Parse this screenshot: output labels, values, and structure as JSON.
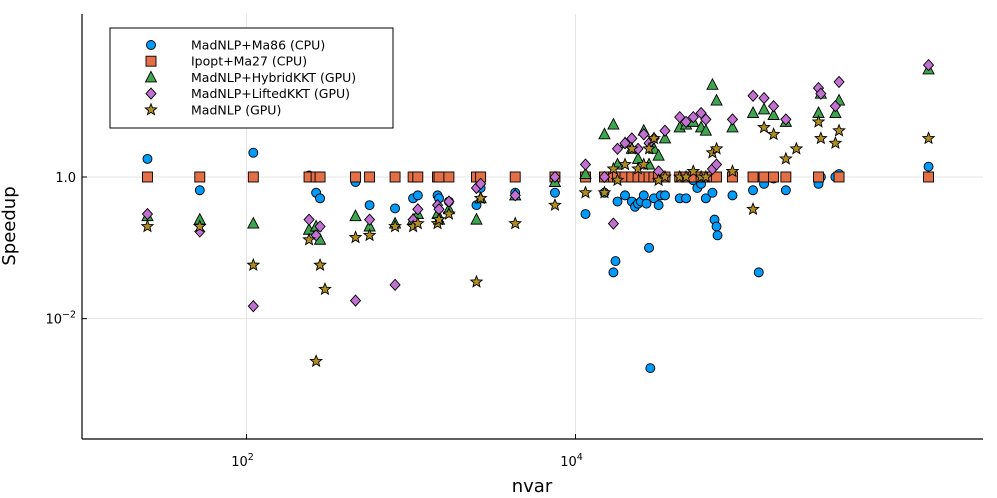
{
  "chart_data": {
    "type": "scatter",
    "title": "",
    "xlabel": "nvar",
    "ylabel": "Speedup",
    "xscale": "log10",
    "yscale": "log10",
    "xlim": [
      10,
      3000000
    ],
    "ylim": [
      0.0002,
      200
    ],
    "xticks": [
      {
        "value": 100,
        "base": "10",
        "exp": "2"
      },
      {
        "value": 10000,
        "base": "10",
        "exp": "4"
      }
    ],
    "yticks": [
      {
        "value": 0.01,
        "base": "10",
        "exp": "−2"
      },
      {
        "value": 1,
        "base": "1.0",
        "exp": ""
      }
    ],
    "grid": true,
    "legend_position": "top-left",
    "series": [
      {
        "name": "MadNLP+Ma86 (CPU)",
        "marker": "circle",
        "color": "#009AFA",
        "points": [
          [
            25,
            1.8
          ],
          [
            52,
            0.65
          ],
          [
            110,
            2.2
          ],
          [
            240,
            1.05
          ],
          [
            265,
            0.6
          ],
          [
            280,
            0.5
          ],
          [
            460,
            0.85
          ],
          [
            560,
            0.4
          ],
          [
            800,
            0.36
          ],
          [
            1030,
            0.5
          ],
          [
            1100,
            0.55
          ],
          [
            1450,
            0.55
          ],
          [
            1480,
            0.5
          ],
          [
            1700,
            0.45
          ],
          [
            2500,
            0.4
          ],
          [
            2650,
            0.7
          ],
          [
            4300,
            0.6
          ],
          [
            7500,
            0.6
          ],
          [
            11500,
            0.3
          ],
          [
            15000,
            0.6
          ],
          [
            17000,
            0.045
          ],
          [
            17500,
            0.065
          ],
          [
            18000,
            0.45
          ],
          [
            20000,
            0.55
          ],
          [
            22000,
            0.45
          ],
          [
            23000,
            0.38
          ],
          [
            24000,
            0.42
          ],
          [
            25000,
            0.45
          ],
          [
            26000,
            0.55
          ],
          [
            27000,
            0.42
          ],
          [
            28000,
            0.1
          ],
          [
            28500,
            0.002
          ],
          [
            30000,
            0.5
          ],
          [
            32000,
            0.4
          ],
          [
            33000,
            0.55
          ],
          [
            35000,
            0.55
          ],
          [
            43000,
            0.5
          ],
          [
            47000,
            0.5
          ],
          [
            52000,
            0.9
          ],
          [
            55000,
            0.7
          ],
          [
            58000,
            0.8
          ],
          [
            62000,
            0.5
          ],
          [
            68000,
            0.6
          ],
          [
            70000,
            0.25
          ],
          [
            72000,
            0.2
          ],
          [
            73000,
            0.15
          ],
          [
            90000,
            0.55
          ],
          [
            120000,
            0.65
          ],
          [
            130000,
            0.045
          ],
          [
            140000,
            0.8
          ],
          [
            160000,
            0.95
          ],
          [
            190000,
            0.65
          ],
          [
            300000,
            0.8
          ],
          [
            310000,
            1.0
          ],
          [
            380000,
            1.0
          ],
          [
            400000,
            1.1
          ],
          [
            1400000,
            1.4
          ]
        ]
      },
      {
        "name": "Ipopt+Ma27 (CPU)",
        "marker": "square",
        "color": "#E26F46",
        "points": [
          [
            25,
            1
          ],
          [
            52,
            1
          ],
          [
            110,
            1
          ],
          [
            240,
            1
          ],
          [
            265,
            1
          ],
          [
            280,
            1
          ],
          [
            460,
            1
          ],
          [
            560,
            1
          ],
          [
            800,
            1
          ],
          [
            1030,
            1
          ],
          [
            1100,
            1
          ],
          [
            1450,
            1
          ],
          [
            1480,
            1
          ],
          [
            1700,
            1
          ],
          [
            2500,
            1
          ],
          [
            2650,
            1
          ],
          [
            4300,
            1
          ],
          [
            7500,
            1
          ],
          [
            11500,
            1
          ],
          [
            15000,
            1
          ],
          [
            17000,
            1
          ],
          [
            18000,
            1
          ],
          [
            20000,
            1
          ],
          [
            22000,
            1
          ],
          [
            24000,
            1
          ],
          [
            26000,
            1
          ],
          [
            28000,
            1
          ],
          [
            30000,
            1
          ],
          [
            32000,
            1
          ],
          [
            35000,
            1
          ],
          [
            43000,
            1
          ],
          [
            47000,
            1
          ],
          [
            52000,
            1
          ],
          [
            58000,
            1
          ],
          [
            62000,
            1
          ],
          [
            68000,
            1
          ],
          [
            72000,
            1
          ],
          [
            90000,
            1
          ],
          [
            120000,
            1
          ],
          [
            140000,
            1
          ],
          [
            160000,
            1
          ],
          [
            190000,
            1
          ],
          [
            300000,
            1
          ],
          [
            400000,
            1
          ],
          [
            1400000,
            1
          ]
        ]
      },
      {
        "name": "MadNLP+HybridKKT (GPU)",
        "marker": "triangle",
        "color": "#3EA44E",
        "points": [
          [
            25,
            0.28
          ],
          [
            52,
            0.25
          ],
          [
            110,
            0.22
          ],
          [
            240,
            0.18
          ],
          [
            265,
            0.2
          ],
          [
            280,
            0.13
          ],
          [
            460,
            0.28
          ],
          [
            560,
            0.2
          ],
          [
            800,
            0.22
          ],
          [
            1030,
            0.25
          ],
          [
            1100,
            0.3
          ],
          [
            1450,
            0.3
          ],
          [
            1480,
            0.25
          ],
          [
            1700,
            0.35
          ],
          [
            2500,
            0.25
          ],
          [
            2650,
            0.5
          ],
          [
            4300,
            0.55
          ],
          [
            7500,
            0.85
          ],
          [
            11500,
            1.1
          ],
          [
            15000,
            4.0
          ],
          [
            17000,
            5.5
          ],
          [
            18000,
            1.5
          ],
          [
            20000,
            3.0
          ],
          [
            22000,
            2.5
          ],
          [
            24000,
            1.8
          ],
          [
            26000,
            4.5
          ],
          [
            28000,
            1.5
          ],
          [
            30000,
            2.5
          ],
          [
            32000,
            2.0
          ],
          [
            35000,
            3.5
          ],
          [
            43000,
            5.0
          ],
          [
            47000,
            5.5
          ],
          [
            52000,
            6.0
          ],
          [
            58000,
            5.0
          ],
          [
            62000,
            4.5
          ],
          [
            68000,
            20
          ],
          [
            72000,
            12
          ],
          [
            90000,
            5.0
          ],
          [
            120000,
            8
          ],
          [
            140000,
            9
          ],
          [
            160000,
            7.5
          ],
          [
            190000,
            6.0
          ],
          [
            300000,
            8
          ],
          [
            310000,
            15
          ],
          [
            380000,
            8
          ],
          [
            400000,
            12
          ],
          [
            1400000,
            33
          ]
        ]
      },
      {
        "name": "MadNLP+LiftedKKT (GPU)",
        "marker": "diamond",
        "color": "#C271D2",
        "points": [
          [
            25,
            0.3
          ],
          [
            52,
            0.17
          ],
          [
            110,
            0.015
          ],
          [
            240,
            0.25
          ],
          [
            265,
            0.15
          ],
          [
            280,
            0.2
          ],
          [
            460,
            0.018
          ],
          [
            560,
            0.25
          ],
          [
            800,
            0.03
          ],
          [
            1030,
            0.25
          ],
          [
            1100,
            0.35
          ],
          [
            1450,
            0.4
          ],
          [
            1480,
            0.35
          ],
          [
            1700,
            0.45
          ],
          [
            2500,
            0.7
          ],
          [
            2650,
            0.8
          ],
          [
            4300,
            0.55
          ],
          [
            7500,
            1.0
          ],
          [
            11500,
            1.5
          ],
          [
            15000,
            1.0
          ],
          [
            17000,
            0.22
          ],
          [
            18000,
            2.5
          ],
          [
            20000,
            3.0
          ],
          [
            22000,
            3.5
          ],
          [
            24000,
            2.5
          ],
          [
            26000,
            4.0
          ],
          [
            28000,
            3.0
          ],
          [
            30000,
            3.5
          ],
          [
            32000,
            1.2
          ],
          [
            35000,
            4.5
          ],
          [
            43000,
            7
          ],
          [
            47000,
            6
          ],
          [
            52000,
            7
          ],
          [
            58000,
            8
          ],
          [
            62000,
            6.5
          ],
          [
            68000,
            1.3
          ],
          [
            72000,
            1.5
          ],
          [
            90000,
            6.5
          ],
          [
            120000,
            14
          ],
          [
            140000,
            13
          ],
          [
            160000,
            10
          ],
          [
            190000,
            6.5
          ],
          [
            300000,
            18
          ],
          [
            310000,
            15
          ],
          [
            380000,
            10
          ],
          [
            400000,
            22
          ],
          [
            1400000,
            38
          ]
        ]
      },
      {
        "name": "MadNLP (GPU)",
        "marker": "star",
        "color": "#AF8D1F",
        "points": [
          [
            25,
            0.2
          ],
          [
            52,
            0.2
          ],
          [
            110,
            0.057
          ],
          [
            240,
            0.13
          ],
          [
            265,
            0.0025
          ],
          [
            280,
            0.057
          ],
          [
            300,
            0.026
          ],
          [
            460,
            0.14
          ],
          [
            560,
            0.15
          ],
          [
            800,
            0.2
          ],
          [
            1030,
            0.2
          ],
          [
            1100,
            0.22
          ],
          [
            1450,
            0.22
          ],
          [
            1480,
            0.25
          ],
          [
            1700,
            0.3
          ],
          [
            2500,
            0.033
          ],
          [
            2650,
            0.5
          ],
          [
            4300,
            0.22
          ],
          [
            7500,
            0.4
          ],
          [
            11500,
            0.6
          ],
          [
            15000,
            0.6
          ],
          [
            17000,
            1.3
          ],
          [
            18000,
            0.9
          ],
          [
            20000,
            1.5
          ],
          [
            22000,
            2.5
          ],
          [
            24000,
            1.3
          ],
          [
            26000,
            1.5
          ],
          [
            28000,
            2.5
          ],
          [
            30000,
            3.5
          ],
          [
            32000,
            0.9
          ],
          [
            35000,
            1.0
          ],
          [
            43000,
            1.0
          ],
          [
            47000,
            1.0
          ],
          [
            52000,
            1.2
          ],
          [
            58000,
            1.0
          ],
          [
            62000,
            1.0
          ],
          [
            68000,
            2.2
          ],
          [
            72000,
            2.5
          ],
          [
            90000,
            1.2
          ],
          [
            120000,
            0.35
          ],
          [
            140000,
            5
          ],
          [
            160000,
            4
          ],
          [
            190000,
            1.8
          ],
          [
            220000,
            2.5
          ],
          [
            300000,
            6
          ],
          [
            310000,
            3.5
          ],
          [
            380000,
            3
          ],
          [
            400000,
            4.5
          ],
          [
            1400000,
            3.5
          ]
        ]
      }
    ]
  }
}
